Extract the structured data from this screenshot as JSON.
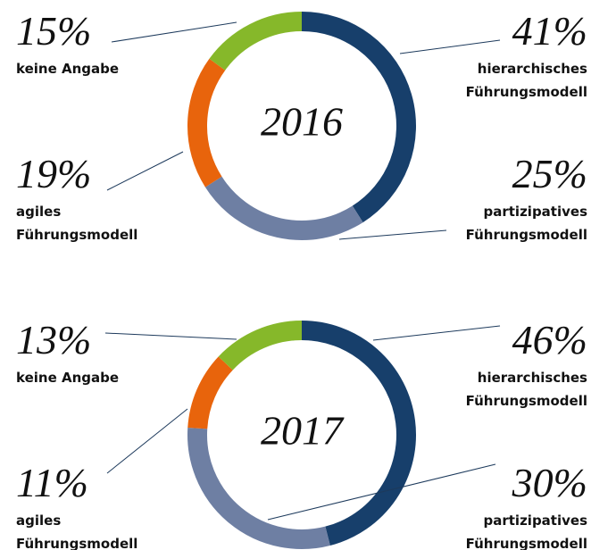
{
  "chart_data": [
    {
      "type": "pie",
      "center_label": "2016",
      "categories": [
        "hierarchisches Führungsmodell",
        "partizipatives Führungsmodell",
        "agiles Führungsmodell",
        "keine Angabe"
      ],
      "values": [
        41,
        25,
        19,
        15
      ],
      "value_labels": [
        "41%",
        "25%",
        "19%",
        "15%"
      ],
      "colors": [
        "#173f6b",
        "#6e7fa3",
        "#e8640c",
        "#86b82a"
      ]
    },
    {
      "type": "pie",
      "center_label": "2017",
      "categories": [
        "hierarchisches Führungsmodell",
        "partizipatives Führungsmodell",
        "agiles Führungsmodell",
        "keine Angabe"
      ],
      "values": [
        46,
        30,
        11,
        13
      ],
      "value_labels": [
        "46%",
        "30%",
        "11%",
        "13%"
      ],
      "colors": [
        "#173f6b",
        "#6e7fa3",
        "#e8640c",
        "#86b82a"
      ]
    }
  ]
}
